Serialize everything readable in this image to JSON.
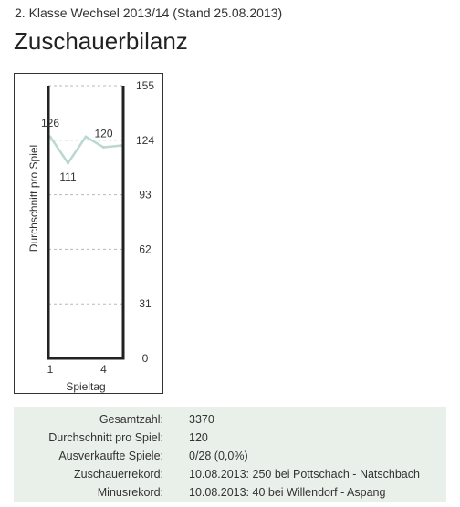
{
  "header": {
    "subtitle": "2. Klasse Wechsel 2013/14 (Stand 25.08.2013)",
    "title": "Zuschauerbilanz"
  },
  "chart_data": {
    "type": "line",
    "ylabel": "Durchschnitt pro Spiel",
    "xlabel": "Spieltag",
    "ylim": [
      0,
      155
    ],
    "y_ticks": [
      "155",
      "124",
      "93",
      "62",
      "31",
      "0"
    ],
    "x_ticks": [
      "1",
      "4"
    ],
    "grid": true,
    "series": [
      {
        "values": [
          126,
          111,
          126,
          120,
          121
        ],
        "color": "#b9d8d2"
      }
    ],
    "data_labels": [
      {
        "x": 1,
        "y": 126,
        "text": "126"
      },
      {
        "x": 2,
        "y": 111,
        "text": "111"
      },
      {
        "x": 4,
        "y": 120,
        "text": "120"
      }
    ]
  },
  "stats": [
    {
      "label": "Gesamtzahl:",
      "value": "3370"
    },
    {
      "label": "Durchschnitt pro Spiel:",
      "value": "120"
    },
    {
      "label": "Ausverkaufte Spiele:",
      "value": "0/28 (0,0%)"
    },
    {
      "label": "Zuschauerrekord:",
      "value": "10.08.2013: 250 bei Pottschach - Natschbach"
    },
    {
      "label": "Minusrekord:",
      "value": "10.08.2013: 40 bei Willendorf - Aspang"
    }
  ]
}
